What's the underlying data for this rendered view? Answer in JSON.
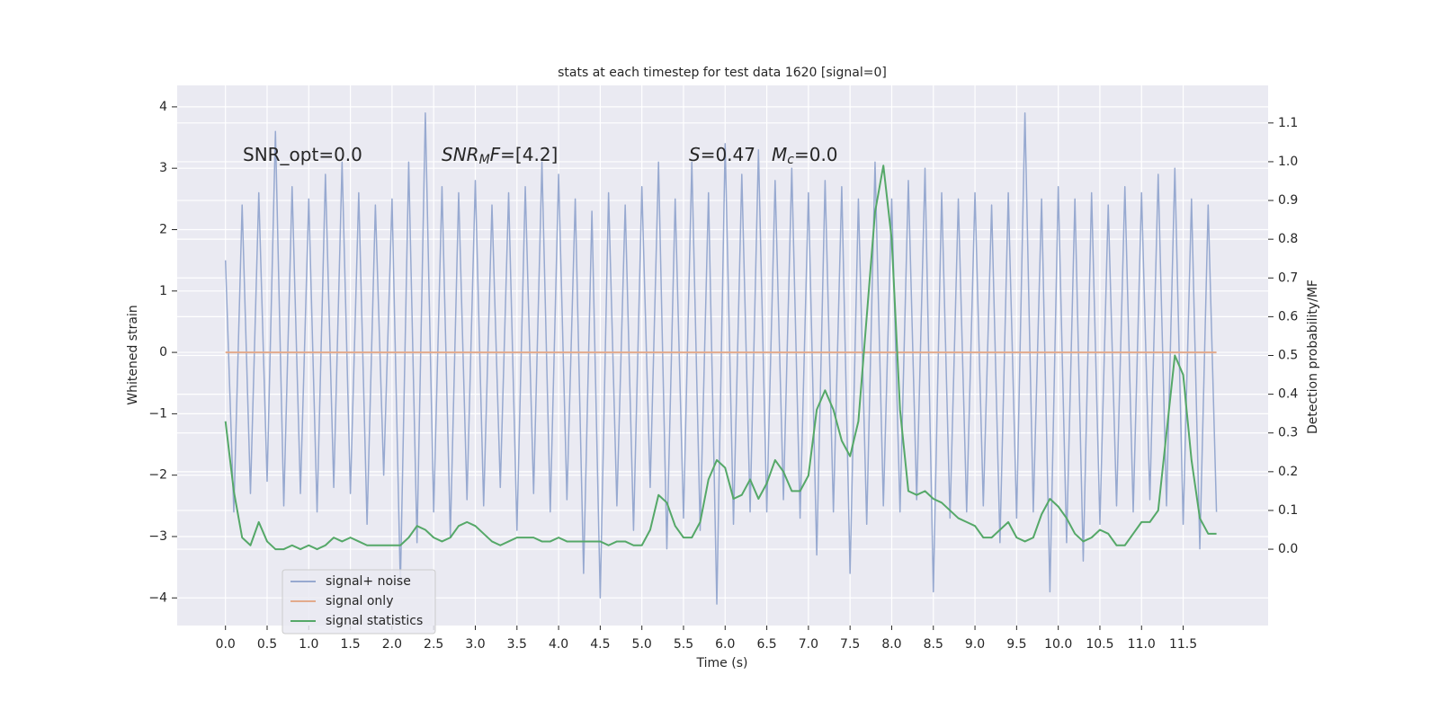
{
  "chart_data": {
    "type": "line",
    "title": "stats at each timestep for test data 1620 [signal=0]",
    "xlabel": "Time (s)",
    "ylabel": "Whitened strain",
    "y2label": "Detection probability/MF",
    "annotations": [
      [
        {
          "text": "SNR_opt=0.0",
          "style": "normal"
        }
      ],
      [
        {
          "text": "SNR",
          "style": "italic"
        },
        {
          "text": "M",
          "style": "sub"
        },
        {
          "text": "F",
          "style": "italic"
        },
        {
          "text": "=[4.2]",
          "style": "normal"
        }
      ],
      [
        {
          "text": "S",
          "style": "italic"
        },
        {
          "text": "=0.47",
          "style": "normal"
        }
      ],
      [
        {
          "text": "M",
          "style": "italic"
        },
        {
          "text": "c",
          "style": "sub"
        },
        {
          "text": "=0.0",
          "style": "normal"
        }
      ]
    ],
    "grid": true,
    "legend": "lower left",
    "xlim": [
      -0.58,
      12.52
    ],
    "ylim": [
      -4.45,
      4.35
    ],
    "y2lim": [
      -0.197,
      1.197
    ],
    "xticks": [
      {
        "value": 0,
        "label": "0.0"
      },
      0.5,
      {
        "value": 1,
        "label": "1.0"
      },
      1.5,
      {
        "value": 2,
        "label": "2.0"
      },
      2.5,
      {
        "value": 3,
        "label": "3.0"
      },
      3.5,
      {
        "value": 4,
        "label": "4.0"
      },
      4.5,
      {
        "value": 5,
        "label": "5.0"
      },
      5.5,
      {
        "value": 6,
        "label": "6.0"
      },
      6.5,
      {
        "value": 7,
        "label": "7.0"
      },
      7.5,
      {
        "value": 8,
        "label": "8.0"
      },
      8.5,
      {
        "value": 9,
        "label": "9.0"
      },
      9.5,
      {
        "value": 10,
        "label": "10.0"
      },
      10.5,
      {
        "value": 11,
        "label": "11.0"
      },
      11.5
    ],
    "yticks": [
      {
        "value": -4,
        "label": "−4"
      },
      {
        "value": -3,
        "label": "−3"
      },
      {
        "value": -2,
        "label": "−2"
      },
      {
        "value": -1,
        "label": "−1"
      },
      0,
      1,
      2,
      3,
      4
    ],
    "y2ticks": [
      {
        "value": 0,
        "label": "0.0"
      },
      0.1,
      0.2,
      0.3,
      0.4,
      0.5,
      0.6,
      0.7,
      0.8,
      0.9,
      {
        "value": 1,
        "label": "1.0"
      },
      1.1
    ],
    "x": [
      0.0,
      0.1,
      0.2,
      0.3,
      0.4,
      0.5,
      0.6,
      0.7,
      0.8,
      0.9,
      1.0,
      1.1,
      1.2,
      1.3,
      1.4,
      1.5,
      1.6,
      1.7,
      1.8,
      1.9,
      2.0,
      2.1,
      2.2,
      2.3,
      2.4,
      2.5,
      2.6,
      2.7,
      2.8,
      2.9,
      3.0,
      3.1,
      3.2,
      3.3,
      3.4,
      3.5,
      3.6,
      3.7,
      3.8,
      3.9,
      4.0,
      4.1,
      4.2,
      4.3,
      4.4,
      4.5,
      4.6,
      4.7,
      4.8,
      4.9,
      5.0,
      5.1,
      5.2,
      5.3,
      5.4,
      5.5,
      5.6,
      5.7,
      5.8,
      5.9,
      6.0,
      6.1,
      6.2,
      6.3,
      6.4,
      6.5,
      6.6,
      6.7,
      6.8,
      6.9,
      7.0,
      7.1,
      7.2,
      7.3,
      7.4,
      7.5,
      7.6,
      7.7,
      7.8,
      7.9,
      8.0,
      8.1,
      8.2,
      8.3,
      8.4,
      8.5,
      8.6,
      8.7,
      8.8,
      8.9,
      9.0,
      9.1,
      9.2,
      9.3,
      9.4,
      9.5,
      9.6,
      9.7,
      9.8,
      9.9,
      10.0,
      10.1,
      10.2,
      10.3,
      10.4,
      10.5,
      10.6,
      10.7,
      10.8,
      10.9,
      11.0,
      11.1,
      11.2,
      11.3,
      11.4,
      11.5,
      11.6,
      11.7,
      11.8,
      11.9
    ],
    "series": [
      {
        "name": "signal+ noise",
        "color": "#97a9d0",
        "values": [
          1.5,
          -2.6,
          2.4,
          -2.3,
          2.6,
          -2.1,
          3.6,
          -2.5,
          2.7,
          -2.3,
          2.5,
          -2.6,
          2.9,
          -2.2,
          3.1,
          -2.3,
          2.6,
          -2.8,
          2.4,
          -2.0,
          2.5,
          -3.8,
          3.1,
          -3.1,
          3.9,
          -2.6,
          2.7,
          -3.0,
          2.6,
          -2.4,
          2.8,
          -2.5,
          2.4,
          -2.2,
          2.6,
          -2.9,
          2.7,
          -2.3,
          3.1,
          -2.6,
          2.9,
          -2.4,
          2.5,
          -3.6,
          2.3,
          -4.0,
          2.6,
          -2.5,
          2.4,
          -2.9,
          2.7,
          -2.2,
          3.1,
          -3.2,
          2.5,
          -2.7,
          3.1,
          -2.9,
          2.6,
          -4.1,
          3.4,
          -2.8,
          2.9,
          -2.6,
          3.3,
          -2.6,
          2.8,
          -2.4,
          3.0,
          -2.7,
          2.6,
          -3.3,
          2.8,
          -2.6,
          2.7,
          -3.6,
          2.5,
          -2.8,
          3.1,
          -2.5,
          2.5,
          -2.6,
          2.8,
          -2.4,
          3.0,
          -3.9,
          2.6,
          -2.7,
          2.5,
          -2.6,
          2.6,
          -2.5,
          2.4,
          -3.1,
          2.6,
          -2.7,
          3.9,
          -2.6,
          2.5,
          -3.9,
          2.7,
          -3.1,
          2.5,
          -3.4,
          2.6,
          -2.8,
          2.4,
          -2.5,
          2.7,
          -2.6,
          2.6,
          -2.4,
          2.9,
          -2.5,
          3.0,
          -2.8,
          2.5,
          -3.2,
          2.4,
          -2.6
        ]
      },
      {
        "name": "signal only",
        "color": "#e3aa8c",
        "values": [
          0,
          0,
          0,
          0,
          0,
          0,
          0,
          0,
          0,
          0,
          0,
          0,
          0,
          0,
          0,
          0,
          0,
          0,
          0,
          0,
          0,
          0,
          0,
          0,
          0,
          0,
          0,
          0,
          0,
          0,
          0,
          0,
          0,
          0,
          0,
          0,
          0,
          0,
          0,
          0,
          0,
          0,
          0,
          0,
          0,
          0,
          0,
          0,
          0,
          0,
          0,
          0,
          0,
          0,
          0,
          0,
          0,
          0,
          0,
          0,
          0,
          0,
          0,
          0,
          0,
          0,
          0,
          0,
          0,
          0,
          0,
          0,
          0,
          0,
          0,
          0,
          0,
          0,
          0,
          0,
          0,
          0,
          0,
          0,
          0,
          0,
          0,
          0,
          0,
          0,
          0,
          0,
          0,
          0,
          0,
          0,
          0,
          0,
          0,
          0,
          0,
          0,
          0,
          0,
          0,
          0,
          0,
          0,
          0,
          0,
          0,
          0,
          0,
          0,
          0,
          0,
          0,
          0,
          0,
          0
        ]
      },
      {
        "name": "signal statistics",
        "color": "#55a868",
        "axis": "y2",
        "values": [
          0.33,
          0.15,
          0.03,
          0.01,
          0.07,
          0.02,
          0.0,
          0.0,
          0.01,
          0.0,
          0.01,
          0.0,
          0.01,
          0.03,
          0.02,
          0.03,
          0.02,
          0.01,
          0.01,
          0.01,
          0.01,
          0.01,
          0.03,
          0.06,
          0.05,
          0.03,
          0.02,
          0.03,
          0.06,
          0.07,
          0.06,
          0.04,
          0.02,
          0.01,
          0.02,
          0.03,
          0.03,
          0.03,
          0.02,
          0.02,
          0.03,
          0.02,
          0.02,
          0.02,
          0.02,
          0.02,
          0.01,
          0.02,
          0.02,
          0.01,
          0.01,
          0.05,
          0.14,
          0.12,
          0.06,
          0.03,
          0.03,
          0.07,
          0.18,
          0.23,
          0.21,
          0.13,
          0.14,
          0.18,
          0.13,
          0.17,
          0.23,
          0.2,
          0.15,
          0.15,
          0.19,
          0.36,
          0.41,
          0.36,
          0.28,
          0.24,
          0.33,
          0.6,
          0.87,
          0.99,
          0.8,
          0.36,
          0.15,
          0.14,
          0.15,
          0.13,
          0.12,
          0.1,
          0.08,
          0.07,
          0.06,
          0.03,
          0.03,
          0.05,
          0.07,
          0.03,
          0.02,
          0.03,
          0.09,
          0.13,
          0.11,
          0.08,
          0.04,
          0.02,
          0.03,
          0.05,
          0.04,
          0.01,
          0.01,
          0.04,
          0.07,
          0.07,
          0.1,
          0.3,
          0.5,
          0.45,
          0.23,
          0.08,
          0.04,
          0.04
        ]
      }
    ]
  }
}
